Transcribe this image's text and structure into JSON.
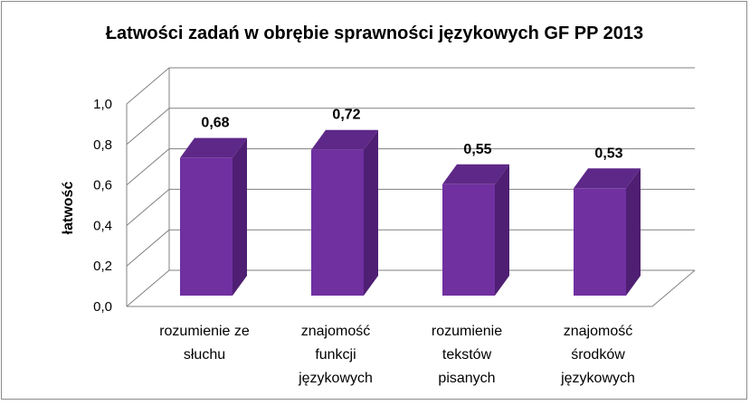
{
  "chart_data": {
    "type": "bar",
    "title": "Łatwości zadań w obrębie sprawności językowych GF PP 2013",
    "ylabel": "łatwość",
    "xlabel": "",
    "categories": [
      [
        "rozumienie ze",
        "słuchu"
      ],
      [
        "znajomość",
        "funkcji",
        "językowych"
      ],
      [
        "rozumienie",
        "tekstów",
        "pisanych"
      ],
      [
        "znajomość",
        "środków",
        "językowych"
      ]
    ],
    "values": [
      0.68,
      0.72,
      0.55,
      0.53
    ],
    "value_labels": [
      "0,68",
      "0,72",
      "0,55",
      "0,53"
    ],
    "ylim": [
      0,
      1.0
    ],
    "yticks": [
      "0,0",
      "0,2",
      "0,4",
      "0,6",
      "0,8",
      "1,0"
    ],
    "grid": true,
    "style": "3d-column",
    "colors": {
      "bar_front": "#7030A0",
      "bar_side": "#4E1F73",
      "bar_top": "#5E2888",
      "grid": "#808080"
    }
  }
}
